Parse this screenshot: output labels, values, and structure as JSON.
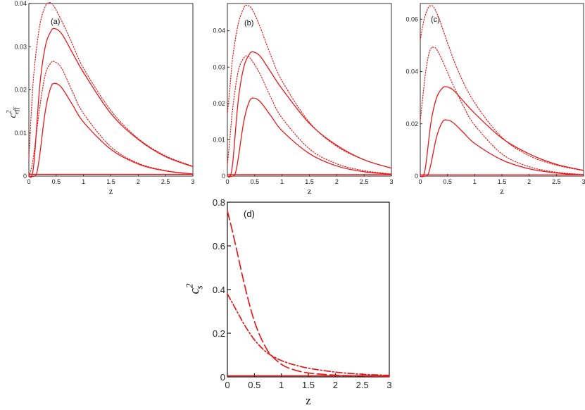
{
  "chart_data": [
    {
      "id": "a",
      "type": "line",
      "panel_label": "(a)",
      "xlabel": "z",
      "ylabel_base": "c",
      "ylabel_sub": "eff",
      "ylabel_sup": "2",
      "xlim": [
        0,
        3
      ],
      "ylim": [
        0,
        0.04
      ],
      "xticks": [
        0,
        0.5,
        1,
        1.5,
        2,
        2.5,
        3
      ],
      "xtick_labels": [
        "0",
        "0.5",
        "1",
        "1.5",
        "2",
        "2.5",
        "3"
      ],
      "yticks": [
        0,
        0.01,
        0.02,
        0.03,
        0.04
      ],
      "ytick_labels": [
        "0",
        "0.01",
        "0.02",
        "0.03",
        "0.04"
      ],
      "series": [
        {
          "style": "solid",
          "color": "#e31a1c",
          "z": [
            0,
            0.05,
            0.1,
            0.2,
            0.3,
            0.4,
            0.47,
            0.6,
            0.8,
            1,
            1.5,
            2,
            2.5,
            3
          ],
          "y": [
            0,
            0,
            0.004,
            0.021,
            0.03,
            0.0335,
            0.0342,
            0.033,
            0.0285,
            0.024,
            0.0145,
            0.0085,
            0.0045,
            0.0022
          ]
        },
        {
          "style": "dotted",
          "color": "#e31a1c",
          "z": [
            0,
            0.05,
            0.1,
            0.2,
            0.3,
            0.37,
            0.45,
            0.6,
            0.8,
            1,
            1.5,
            2,
            2.5,
            3
          ],
          "y": [
            0.004,
            0.016,
            0.025,
            0.035,
            0.0393,
            0.0402,
            0.0395,
            0.036,
            0.0305,
            0.025,
            0.0152,
            0.0087,
            0.0047,
            0.0023
          ]
        },
        {
          "style": "solid",
          "color": "#e31a1c",
          "z": [
            0,
            0.1,
            0.15,
            0.2,
            0.3,
            0.4,
            0.48,
            0.6,
            0.8,
            1,
            1.5,
            2,
            2.5,
            3
          ],
          "y": [
            0,
            0,
            0.001,
            0.005,
            0.015,
            0.0205,
            0.0215,
            0.0205,
            0.0165,
            0.0125,
            0.0062,
            0.0028,
            0.0012,
            0.0005
          ]
        },
        {
          "style": "dotted",
          "color": "#e31a1c",
          "z": [
            0,
            0.05,
            0.1,
            0.2,
            0.3,
            0.4,
            0.47,
            0.6,
            0.8,
            1,
            1.5,
            2,
            2.5,
            3
          ],
          "y": [
            0,
            0.002,
            0.006,
            0.016,
            0.0235,
            0.0262,
            0.0265,
            0.025,
            0.0195,
            0.0145,
            0.0068,
            0.003,
            0.0013,
            0.0005
          ]
        },
        {
          "style": "solid",
          "color": "#e31a1c",
          "z": [
            0,
            3
          ],
          "y": [
            0.0004,
            0.0004
          ]
        }
      ]
    },
    {
      "id": "b",
      "type": "line",
      "panel_label": "(b)",
      "xlabel": "z",
      "xlim": [
        0,
        3
      ],
      "ylim": [
        0,
        0.0475
      ],
      "xticks": [
        0,
        0.5,
        1,
        1.5,
        2,
        2.5,
        3
      ],
      "xtick_labels": [
        "0",
        "0.5",
        "1",
        "1.5",
        "2",
        "2.5",
        "3"
      ],
      "yticks": [
        0,
        0.01,
        0.02,
        0.03,
        0.04
      ],
      "ytick_labels": [
        "0",
        "0.01",
        "0.02",
        "0.03",
        "0.04"
      ],
      "series": [
        {
          "style": "dotted",
          "color": "#e31a1c",
          "z": [
            0,
            0.05,
            0.1,
            0.2,
            0.3,
            0.35,
            0.45,
            0.6,
            0.8,
            1,
            1.5,
            2,
            2.5,
            3
          ],
          "y": [
            0.017,
            0.025,
            0.033,
            0.042,
            0.0463,
            0.047,
            0.046,
            0.041,
            0.033,
            0.0262,
            0.0148,
            0.0082,
            0.0045,
            0.0022
          ]
        },
        {
          "style": "solid",
          "color": "#e31a1c",
          "z": [
            0,
            0.05,
            0.1,
            0.2,
            0.3,
            0.4,
            0.47,
            0.6,
            0.8,
            1,
            1.5,
            2,
            2.5,
            3
          ],
          "y": [
            0,
            0,
            0.004,
            0.021,
            0.03,
            0.0335,
            0.0342,
            0.033,
            0.0285,
            0.024,
            0.0145,
            0.0085,
            0.0045,
            0.0022
          ]
        },
        {
          "style": "dotted",
          "color": "#e31a1c",
          "z": [
            0,
            0.05,
            0.1,
            0.2,
            0.3,
            0.37,
            0.45,
            0.6,
            0.8,
            1,
            1.5,
            2,
            2.5,
            3
          ],
          "y": [
            0.003,
            0.011,
            0.019,
            0.029,
            0.0325,
            0.033,
            0.0318,
            0.028,
            0.0215,
            0.016,
            0.0075,
            0.0034,
            0.0015,
            0.0006
          ]
        },
        {
          "style": "solid",
          "color": "#e31a1c",
          "z": [
            0,
            0.1,
            0.15,
            0.2,
            0.3,
            0.4,
            0.48,
            0.6,
            0.8,
            1,
            1.5,
            2,
            2.5,
            3
          ],
          "y": [
            0,
            0,
            0.001,
            0.005,
            0.015,
            0.0205,
            0.0215,
            0.0205,
            0.0165,
            0.0125,
            0.0062,
            0.0028,
            0.0012,
            0.0005
          ]
        },
        {
          "style": "solid",
          "color": "#e31a1c",
          "z": [
            0,
            3
          ],
          "y": [
            0.0004,
            0.0004
          ]
        }
      ]
    },
    {
      "id": "c",
      "type": "line",
      "panel_label": "(c)",
      "xlabel": "z",
      "xlim": [
        0,
        3
      ],
      "ylim": [
        0,
        0.066
      ],
      "xticks": [
        0,
        0.5,
        1,
        1.5,
        2,
        2.5,
        3
      ],
      "xtick_labels": [
        "0",
        "0.5",
        "1",
        "1.5",
        "2",
        "2.5",
        "3"
      ],
      "yticks": [
        0,
        0.02,
        0.04,
        0.06
      ],
      "ytick_labels": [
        "0",
        "0.02",
        "0.04",
        "0.06"
      ],
      "series": [
        {
          "style": "dotted",
          "color": "#e31a1c",
          "z": [
            0,
            0.05,
            0.1,
            0.15,
            0.2,
            0.25,
            0.35,
            0.5,
            0.7,
            1,
            1.5,
            2,
            2.5,
            3
          ],
          "y": [
            0.052,
            0.058,
            0.062,
            0.0645,
            0.0652,
            0.0645,
            0.06,
            0.051,
            0.04,
            0.028,
            0.0148,
            0.0078,
            0.0042,
            0.0021
          ]
        },
        {
          "style": "dotted",
          "color": "#e31a1c",
          "z": [
            0,
            0.05,
            0.1,
            0.15,
            0.2,
            0.25,
            0.3,
            0.4,
            0.6,
            0.8,
            1,
            1.5,
            2,
            2.5,
            3
          ],
          "y": [
            0.021,
            0.031,
            0.04,
            0.046,
            0.049,
            0.0492,
            0.0485,
            0.0445,
            0.035,
            0.0265,
            0.0195,
            0.0085,
            0.0036,
            0.0015,
            0.0006
          ]
        },
        {
          "style": "solid",
          "color": "#e31a1c",
          "z": [
            0,
            0.05,
            0.1,
            0.2,
            0.3,
            0.4,
            0.47,
            0.6,
            0.8,
            1,
            1.5,
            2,
            2.5,
            3
          ],
          "y": [
            0,
            0,
            0.004,
            0.021,
            0.03,
            0.0335,
            0.0342,
            0.033,
            0.0285,
            0.024,
            0.0145,
            0.0085,
            0.0045,
            0.0022
          ]
        },
        {
          "style": "solid",
          "color": "#e31a1c",
          "z": [
            0,
            0.1,
            0.15,
            0.2,
            0.3,
            0.4,
            0.48,
            0.6,
            0.8,
            1,
            1.5,
            2,
            2.5,
            3
          ],
          "y": [
            0,
            0,
            0.001,
            0.005,
            0.015,
            0.0205,
            0.0215,
            0.0205,
            0.0165,
            0.0125,
            0.0062,
            0.0028,
            0.0012,
            0.0005
          ]
        },
        {
          "style": "solid",
          "color": "#e31a1c",
          "z": [
            0,
            3
          ],
          "y": [
            0.0005,
            0.0005
          ]
        }
      ]
    },
    {
      "id": "d",
      "type": "line",
      "panel_label": "(d)",
      "xlabel": "z",
      "ylabel_base": "c",
      "ylabel_sub": "s",
      "ylabel_sup": "2",
      "xlim": [
        0,
        3
      ],
      "ylim": [
        0,
        0.8
      ],
      "xticks": [
        0,
        0.5,
        1,
        1.5,
        2,
        2.5,
        3
      ],
      "xtick_labels": [
        "0",
        "0.5",
        "1",
        "1.5",
        "2",
        "2.5",
        "3"
      ],
      "yticks": [
        0,
        0.2,
        0.4,
        0.6,
        0.8
      ],
      "ytick_labels": [
        "0",
        "0.2",
        "0.4",
        "0.6",
        "0.8"
      ],
      "series": [
        {
          "style": "longdash",
          "color": "#e31a1c",
          "z": [
            0,
            0.1,
            0.2,
            0.3,
            0.4,
            0.5,
            0.6,
            0.7,
            0.8,
            1,
            1.2,
            1.5,
            2,
            2.5,
            3
          ],
          "y": [
            0.76,
            0.66,
            0.55,
            0.44,
            0.34,
            0.255,
            0.19,
            0.14,
            0.102,
            0.058,
            0.035,
            0.018,
            0.008,
            0.004,
            0.002
          ]
        },
        {
          "style": "dashdot",
          "color": "#e31a1c",
          "z": [
            0,
            0.1,
            0.2,
            0.3,
            0.4,
            0.5,
            0.6,
            0.7,
            0.8,
            1,
            1.2,
            1.5,
            2,
            2.5,
            3
          ],
          "y": [
            0.38,
            0.335,
            0.29,
            0.245,
            0.205,
            0.17,
            0.142,
            0.118,
            0.1,
            0.075,
            0.058,
            0.04,
            0.022,
            0.012,
            0.007
          ]
        },
        {
          "style": "solid",
          "color": "#e31a1c",
          "z": [
            0,
            3
          ],
          "y": [
            0.005,
            0.005
          ]
        }
      ]
    }
  ]
}
